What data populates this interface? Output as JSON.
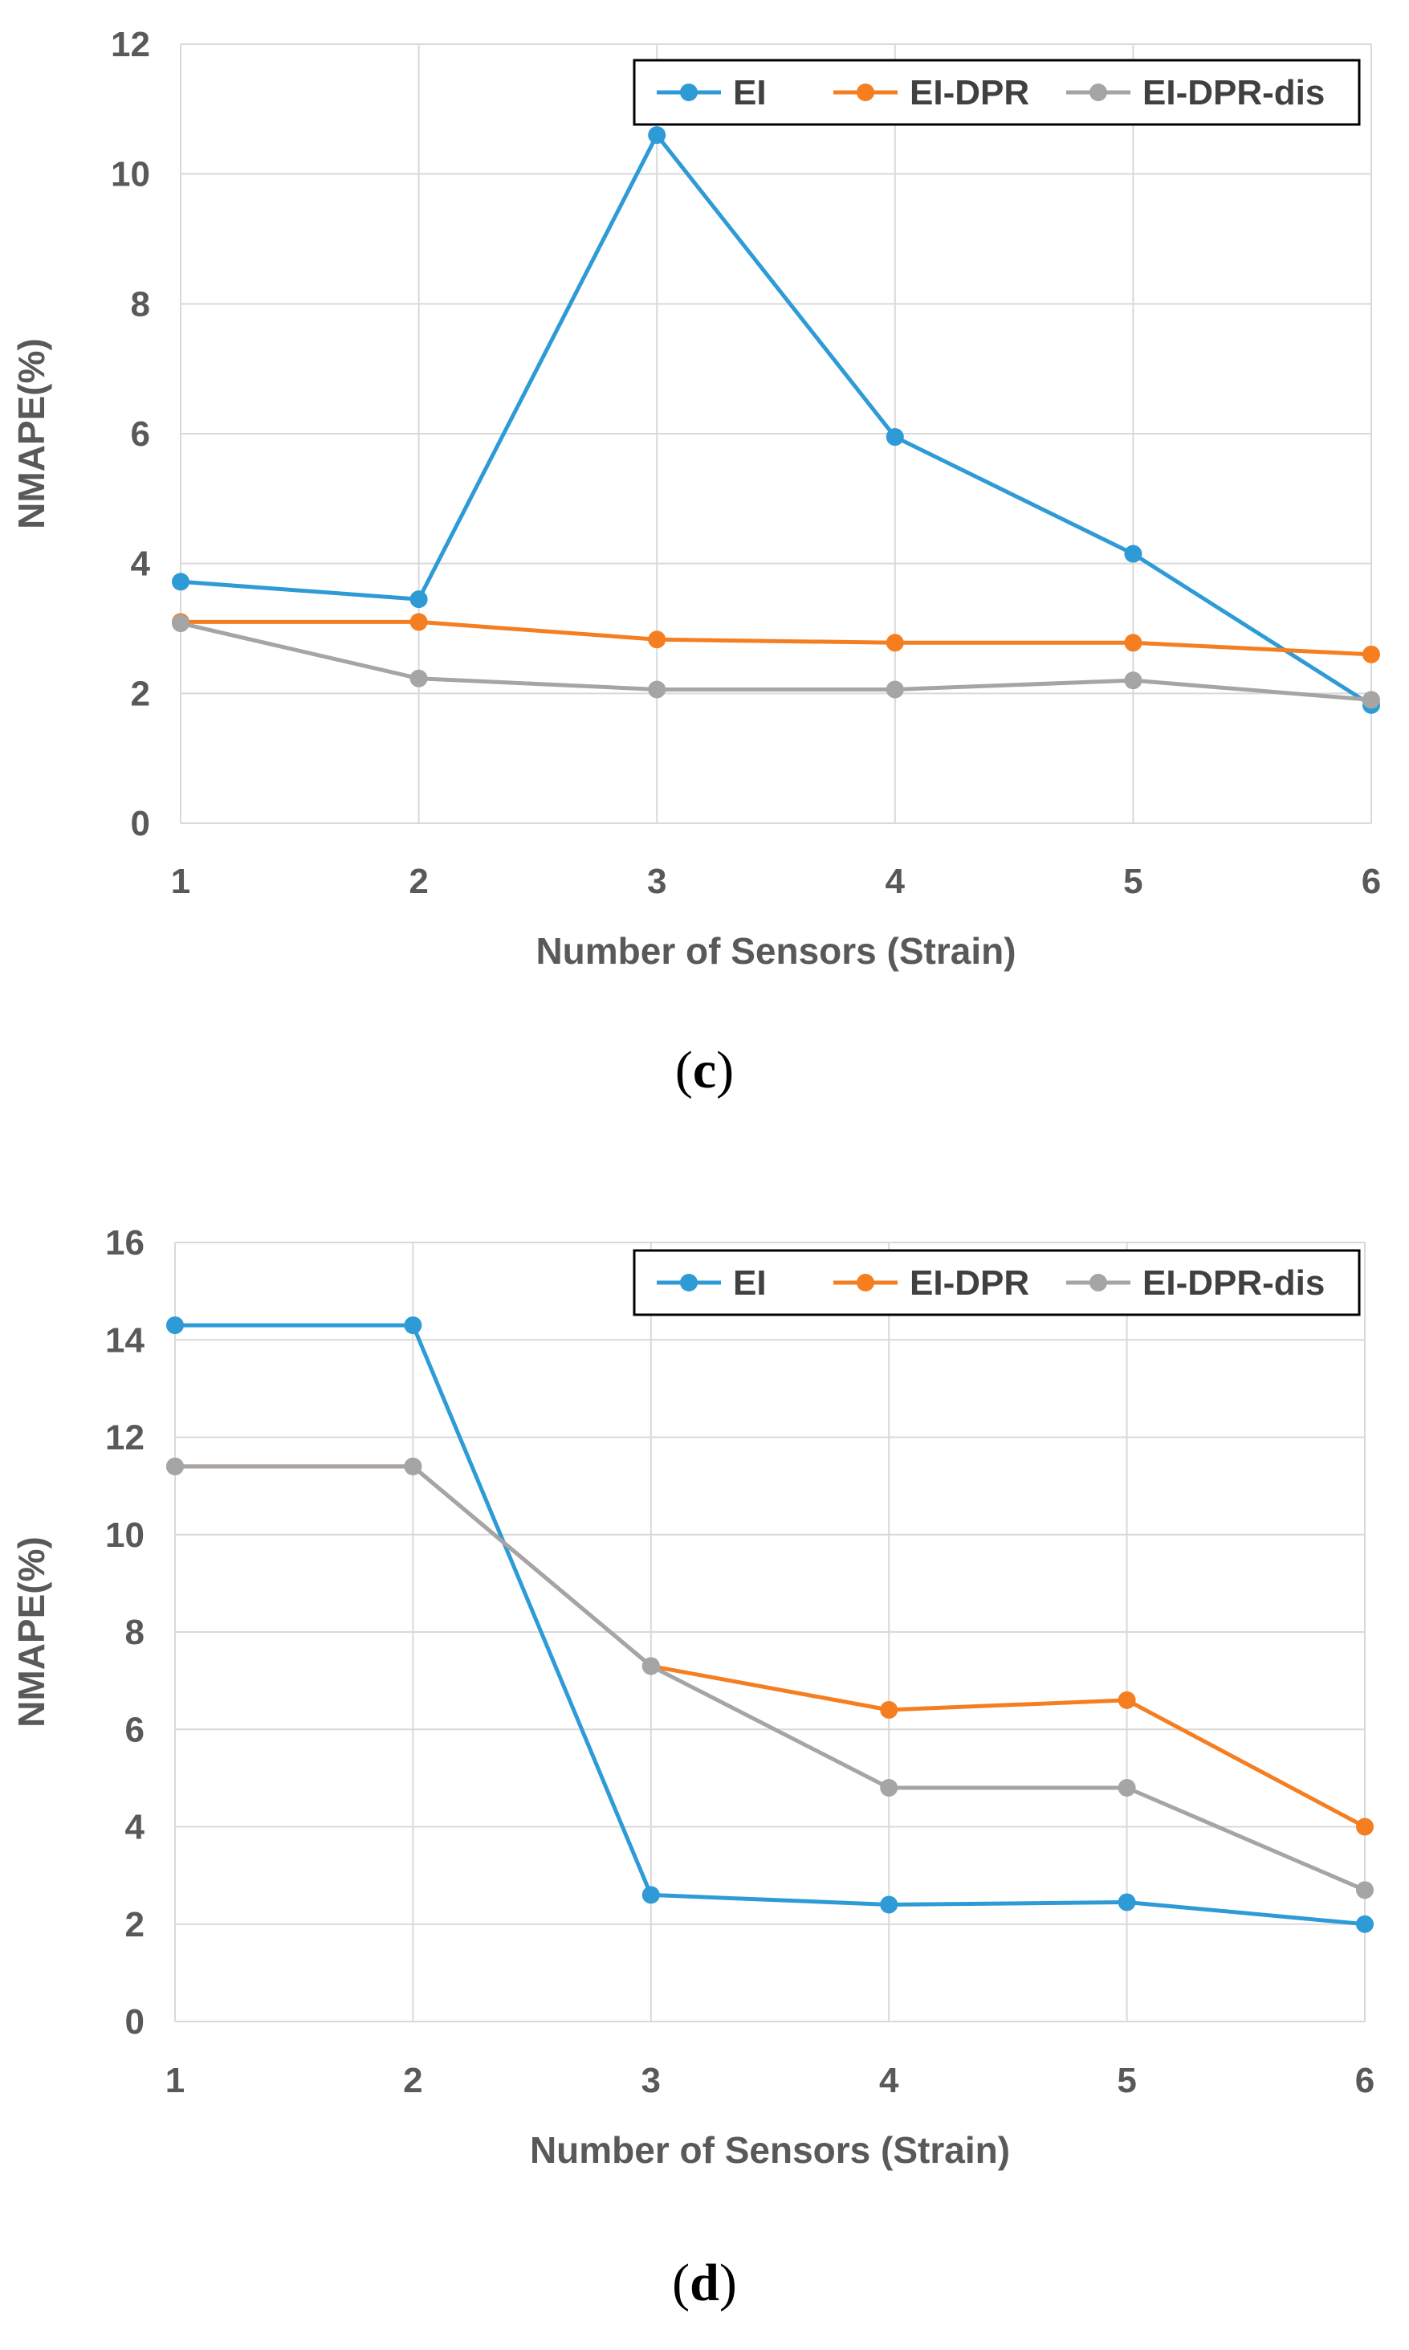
{
  "chart_data": [
    {
      "type": "line",
      "panel_label": "(c)",
      "panel_letter": "c",
      "xlabel": "Number of Sensors (Strain)",
      "ylabel": "NMAPE(%)",
      "categories": [
        "1",
        "2",
        "3",
        "4",
        "5",
        "6"
      ],
      "x": [
        1,
        2,
        3,
        4,
        5,
        6
      ],
      "xlim": [
        1,
        6
      ],
      "ylim": [
        0,
        12
      ],
      "yticks": [
        0,
        2,
        4,
        6,
        8,
        10,
        12
      ],
      "grid": true,
      "legend_position": "top-right",
      "series": [
        {
          "name": "EI",
          "color": "#2E9BD6",
          "values": [
            3.72,
            3.45,
            10.6,
            5.95,
            4.15,
            1.82
          ]
        },
        {
          "name": "EI-DPR",
          "color": "#F57E20",
          "values": [
            3.1,
            3.1,
            2.83,
            2.78,
            2.78,
            2.6
          ]
        },
        {
          "name": "EI-DPR-dis",
          "color": "#A5A5A5",
          "values": [
            3.08,
            2.23,
            2.06,
            2.06,
            2.2,
            1.9
          ]
        }
      ]
    },
    {
      "type": "line",
      "panel_label": "(d)",
      "panel_letter": "d",
      "xlabel": "Number of Sensors (Strain)",
      "ylabel": "NMAPE(%)",
      "categories": [
        "1",
        "2",
        "3",
        "4",
        "5",
        "6"
      ],
      "x": [
        1,
        2,
        3,
        4,
        5,
        6
      ],
      "xlim": [
        1,
        6
      ],
      "ylim": [
        0,
        16
      ],
      "yticks": [
        0,
        2,
        4,
        6,
        8,
        10,
        12,
        14,
        16
      ],
      "grid": true,
      "legend_position": "top-right",
      "series": [
        {
          "name": "EI",
          "color": "#2E9BD6",
          "values": [
            14.3,
            14.3,
            2.6,
            2.4,
            2.45,
            2.0
          ]
        },
        {
          "name": "EI-DPR",
          "color": "#F57E20",
          "values": [
            11.4,
            11.4,
            7.3,
            6.4,
            6.6,
            4.0
          ]
        },
        {
          "name": "EI-DPR-dis",
          "color": "#A5A5A5",
          "values": [
            11.4,
            11.4,
            7.3,
            4.8,
            4.8,
            2.7
          ]
        }
      ]
    }
  ]
}
